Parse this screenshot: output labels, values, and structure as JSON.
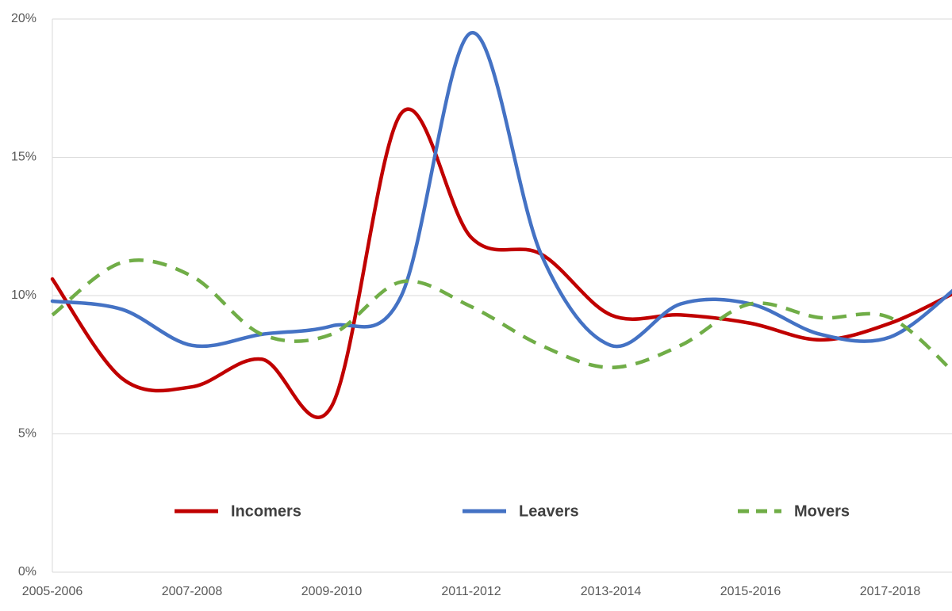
{
  "chart_data": {
    "type": "line",
    "categories": [
      "2005-2006",
      null,
      "2007-2008",
      null,
      "2009-2010",
      null,
      "2011-2012",
      null,
      "2013-2014",
      null,
      "2015-2016",
      null,
      "2017-2018",
      null
    ],
    "series": [
      {
        "name": "Incomers",
        "color": "#c00000",
        "dash": false,
        "values": [
          10.6,
          7.0,
          6.7,
          7.7,
          6.0,
          16.6,
          12.1,
          11.5,
          9.3,
          9.3,
          9.0,
          8.4,
          9.0,
          10.2
        ]
      },
      {
        "name": "Leavers",
        "color": "#4472c4",
        "dash": false,
        "values": [
          9.8,
          9.5,
          8.2,
          8.6,
          8.9,
          10.0,
          19.5,
          11.5,
          8.2,
          9.7,
          9.7,
          8.6,
          8.5,
          10.4
        ]
      },
      {
        "name": "Movers",
        "color": "#70ad47",
        "dash": true,
        "values": [
          9.3,
          11.2,
          10.7,
          8.6,
          8.6,
          10.5,
          9.6,
          8.2,
          7.4,
          8.2,
          9.7,
          9.2,
          9.2,
          7.0
        ]
      }
    ],
    "ylim": [
      0,
      20
    ],
    "yticks": [
      {
        "value": 0,
        "label": "0%"
      },
      {
        "value": 5,
        "label": "5%"
      },
      {
        "value": 10,
        "label": "10%"
      },
      {
        "value": 15,
        "label": "15%"
      },
      {
        "value": 20,
        "label": "20%"
      }
    ],
    "grid": true,
    "legend": "bottom"
  }
}
